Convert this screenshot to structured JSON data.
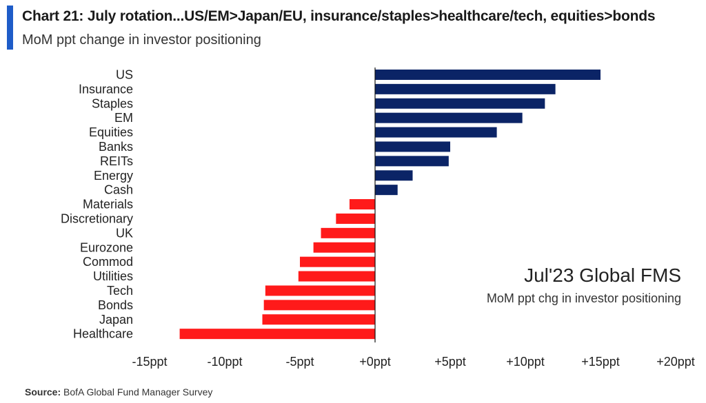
{
  "header": {
    "title": "Chart 21: July rotation...US/EM>Japan/EU, insurance/staples>healthcare/tech, equities>bonds",
    "subtitle": "MoM ppt change in investor positioning"
  },
  "annotation": {
    "title": "Jul'23 Global FMS",
    "subtitle": "MoM ppt chg in investor positioning"
  },
  "footer": {
    "source_label": "Source:",
    "source_text": "BofA Global Fund Manager Survey"
  },
  "colors": {
    "positive": "#0b2466",
    "negative": "#ff1a1a",
    "accent": "#1e5cc8"
  },
  "chart_data": {
    "type": "bar",
    "orientation": "horizontal",
    "categories": [
      "US",
      "Insurance",
      "Staples",
      "EM",
      "Equities",
      "Banks",
      "REITs",
      "Energy",
      "Cash",
      "Materials",
      "Discretionary",
      "UK",
      "Eurozone",
      "Commod",
      "Utilities",
      "Tech",
      "Bonds",
      "Japan",
      "Healthcare"
    ],
    "values": [
      15,
      12,
      11.3,
      9.8,
      8.1,
      5,
      4.9,
      2.5,
      1.5,
      -1.7,
      -2.6,
      -3.6,
      -4.1,
      -5,
      -5.1,
      -7.3,
      -7.4,
      -7.5,
      -13
    ],
    "xlim": [
      -15,
      20
    ],
    "xticks": [
      -15,
      -10,
      -5,
      0,
      5,
      10,
      15,
      20
    ],
    "xtick_labels": [
      "-15ppt",
      "-10ppt",
      "-5ppt",
      "+0ppt",
      "+5ppt",
      "+10ppt",
      "+15ppt",
      "+20ppt"
    ],
    "grid": false,
    "legend": "none"
  }
}
